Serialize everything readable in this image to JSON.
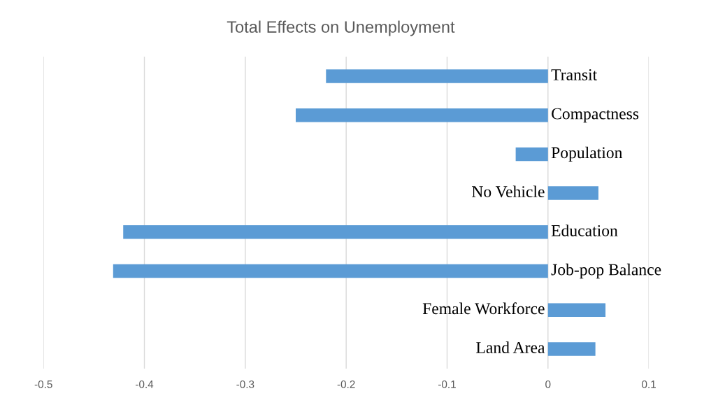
{
  "chart_data": {
    "type": "bar",
    "orientation": "horizontal",
    "title": "Total Effects on Unemployment",
    "categories": [
      "Transit",
      "Compactness",
      "Population",
      "No Vehicle",
      "Education",
      "Job-pop Balance",
      "Female Workforce",
      "Land Area"
    ],
    "values": [
      -0.22,
      -0.25,
      -0.032,
      0.05,
      -0.421,
      -0.431,
      0.057,
      0.047
    ],
    "color": "#5b9bd5",
    "xlim": [
      -0.5,
      0.1
    ],
    "xticks": [
      -0.5,
      -0.4,
      -0.3,
      -0.2,
      -0.1,
      0,
      0.1
    ],
    "grid": "x"
  }
}
